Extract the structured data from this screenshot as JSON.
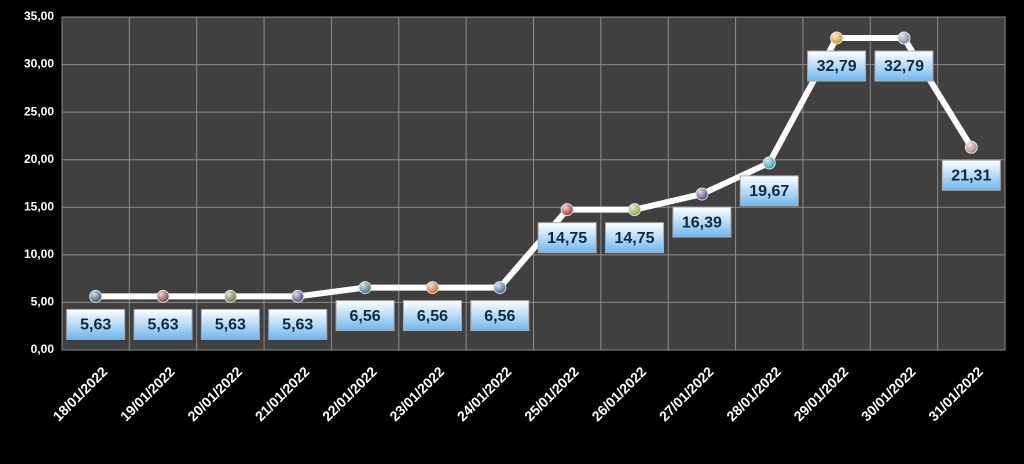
{
  "chart_data": {
    "type": "line",
    "categories": [
      "18/01/2022",
      "19/01/2022",
      "20/01/2022",
      "21/01/2022",
      "22/01/2022",
      "23/01/2022",
      "24/01/2022",
      "25/01/2022",
      "26/01/2022",
      "27/01/2022",
      "28/01/2022",
      "29/01/2022",
      "30/01/2022",
      "31/01/2022"
    ],
    "series": [
      {
        "color": "#ffffff",
        "values": [
          5.63,
          5.63,
          5.63,
          5.63,
          6.56,
          6.56,
          6.56,
          14.75,
          14.75,
          16.39,
          19.67,
          32.79,
          32.79,
          21.31
        ],
        "value_labels": [
          "5,63",
          "5,63",
          "5,63",
          "5,63",
          "6,56",
          "6,56",
          "6,56",
          "14,75",
          "14,75",
          "16,39",
          "19,67",
          "32,79",
          "32,79",
          "21,31"
        ],
        "marker_colors": [
          "#3a5a7a",
          "#8a3a3a",
          "#6a7a3a",
          "#5a4a7a",
          "#3a7a8a",
          "#c07030",
          "#4a6a9a",
          "#b03030",
          "#8aaa40",
          "#6a4a8a",
          "#30a0b0",
          "#e09030",
          "#7a8aa0",
          "#b08080"
        ]
      }
    ],
    "ylim": [
      0,
      35
    ],
    "yticks": [
      {
        "value": 0,
        "label": "0,00"
      },
      {
        "value": 5,
        "label": "5,00"
      },
      {
        "value": 10,
        "label": "10,00"
      },
      {
        "value": 15,
        "label": "15,00"
      },
      {
        "value": 20,
        "label": "20,00"
      },
      {
        "value": 25,
        "label": "25,00"
      },
      {
        "value": 30,
        "label": "30,00"
      },
      {
        "value": 35,
        "label": "35,00"
      }
    ],
    "grid": true
  }
}
